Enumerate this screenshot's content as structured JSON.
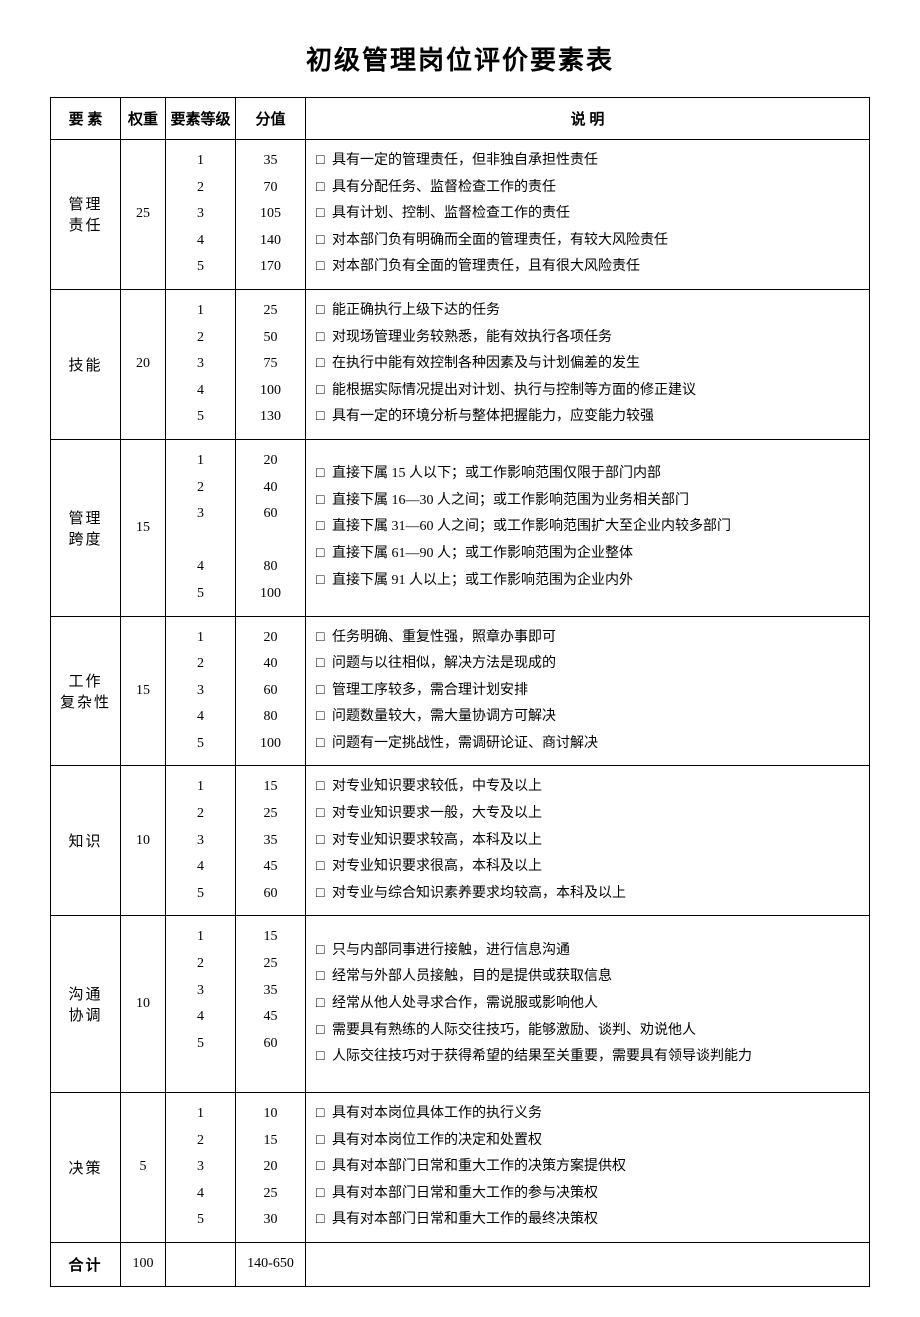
{
  "title": "初级管理岗位评价要素表",
  "headers": {
    "factor": "要  素",
    "weight": "权重",
    "level": "要素等级",
    "score": "分值",
    "desc": "说      明"
  },
  "checkbox_symbol": "□",
  "factors": [
    {
      "name": "管理\n责任",
      "weight": "25",
      "levels": [
        "1",
        "2",
        "3",
        "4",
        "5"
      ],
      "scores": [
        "35",
        "70",
        "105",
        "140",
        "170"
      ],
      "descs": [
        "具有一定的管理责任，但非独自承担性责任",
        "具有分配任务、监督检查工作的责任",
        "具有计划、控制、监督检查工作的责任",
        "对本部门负有明确而全面的管理责任，有较大风险责任",
        "对本部门负有全面的管理责任，且有很大风险责任"
      ]
    },
    {
      "name": "技能",
      "weight": "20",
      "levels": [
        "1",
        "2",
        "3",
        "4",
        "5"
      ],
      "scores": [
        "25",
        "50",
        "75",
        "100",
        "130"
      ],
      "descs": [
        "能正确执行上级下达的任务",
        " 对现场管理业务较熟悉，能有效执行各项任务",
        " 在执行中能有效控制各种因素及与计划偏差的发生",
        "能根据实际情况提出对计划、执行与控制等方面的修正建议",
        "具有一定的环境分析与整体把握能力，应变能力较强"
      ]
    },
    {
      "name": "管理\n跨度",
      "weight": "15",
      "levels": [
        "1",
        "2",
        "3",
        "",
        "4",
        "5"
      ],
      "scores": [
        "20",
        "40",
        "60",
        "",
        "80",
        "100"
      ],
      "descs": [
        "直接下属 15 人以下；或工作影响范围仅限于部门内部",
        "直接下属 16—30 人之间；或工作影响范围为业务相关部门",
        "直接下属 31—60 人之间；或工作影响范围扩大至企业内较多部门",
        "直接下属 61—90 人；或工作影响范围为企业整体",
        "直接下属 91 人以上；或工作影响范围为企业内外"
      ],
      "desc_checkbox_flags": [
        true,
        true,
        true,
        true,
        true
      ],
      "wrap_index": 2
    },
    {
      "name": "工作\n复杂性",
      "weight": "15",
      "levels": [
        "1",
        "2",
        "3",
        "4",
        "5"
      ],
      "scores": [
        "20",
        "40",
        "60",
        "80",
        "100"
      ],
      "descs": [
        "任务明确、重复性强，照章办事即可",
        "问题与以往相似，解决方法是现成的",
        "管理工序较多，需合理计划安排",
        "问题数量较大，需大量协调方可解决",
        "问题有一定挑战性，需调研论证、商讨解决"
      ]
    },
    {
      "name": "知识",
      "weight": "10",
      "levels": [
        "1",
        "2",
        "3",
        "4",
        "5"
      ],
      "scores": [
        "15",
        "25",
        "35",
        "45",
        "60"
      ],
      "descs": [
        "对专业知识要求较低，中专及以上",
        "对专业知识要求一般，大专及以上",
        "对专业知识要求较高，本科及以上",
        "对专业知识要求很高，本科及以上",
        "对专业与综合知识素养要求均较高，本科及以上"
      ]
    },
    {
      "name": "沟通\n协调",
      "weight": "10",
      "levels": [
        "1",
        "2",
        "3",
        "4",
        "5",
        ""
      ],
      "scores": [
        "15",
        "25",
        "35",
        "45",
        "60",
        ""
      ],
      "descs": [
        "只与内部同事进行接触，进行信息沟通",
        "经常与外部人员接触，目的是提供或获取信息",
        "经常从他人处寻求合作，需说服或影响他人",
        "需要具有熟练的人际交往技巧，能够激励、谈判、劝说他人",
        "人际交往技巧对于获得希望的结果至关重要，需要具有领导谈判能力"
      ],
      "wrap_index": 4
    },
    {
      "name": "决策",
      "weight": "5",
      "levels": [
        "1",
        "2",
        "3",
        "4",
        "5"
      ],
      "scores": [
        "10",
        "15",
        "20",
        "25",
        "30"
      ],
      "descs": [
        "具有对本岗位具体工作的执行义务",
        "具有对本岗位工作的决定和处置权",
        "具有对本部门日常和重大工作的决策方案提供权",
        "具有对本部门日常和重大工作的参与决策权",
        "具有对本部门日常和重大工作的最终决策权"
      ]
    }
  ],
  "total": {
    "label": "合计",
    "weight": "100",
    "level": "",
    "score": "140-650",
    "desc": ""
  }
}
